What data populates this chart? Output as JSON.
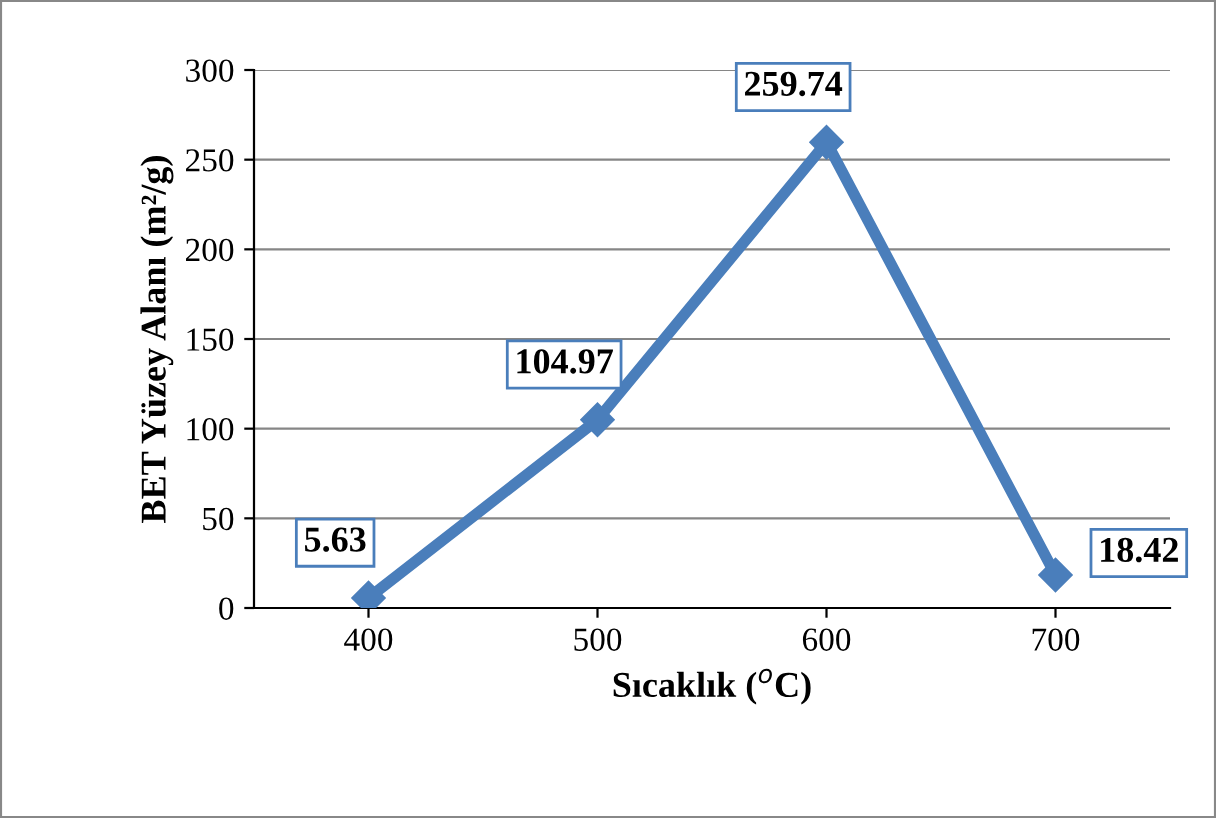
{
  "chart_data": {
    "type": "line",
    "xlabel": "Sıcaklık ($^{o}$C)",
    "ylabel": "BET Yüzey Alanı (m²/g)",
    "categories": [
      "400",
      "500",
      "600",
      "700"
    ],
    "series": [
      {
        "color": "#4a7ebb",
        "values": [
          5.63,
          104.97,
          259.74,
          18.42
        ]
      }
    ],
    "ylim": [
      0,
      300
    ],
    "yticks": [
      0,
      50,
      100,
      150,
      200,
      250,
      300
    ],
    "grid": "y",
    "marker": "diamond",
    "line_style": "solid",
    "data_labels": true
  }
}
